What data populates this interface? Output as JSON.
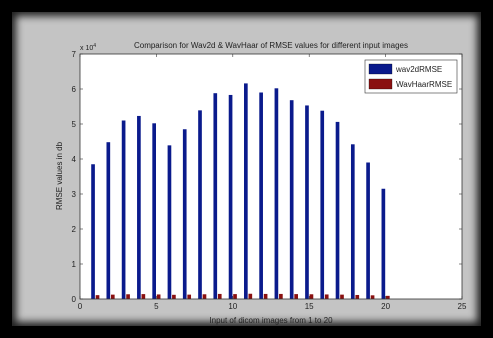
{
  "chart_data": {
    "type": "bar",
    "title": "Comparison for Wav2d & WavHaar of RMSE values for different input images",
    "xlabel": "Input of dicom images from 1 to 20",
    "ylabel": "RMSE values in db",
    "x": [
      1,
      2,
      3,
      4,
      5,
      6,
      7,
      8,
      9,
      10,
      11,
      12,
      13,
      14,
      15,
      16,
      17,
      18,
      19,
      20
    ],
    "xlim": [
      0,
      25
    ],
    "ylim": [
      0,
      70000
    ],
    "xticks": [
      0,
      5,
      10,
      15,
      20,
      25
    ],
    "yticks": [
      0,
      10000,
      20000,
      30000,
      40000,
      50000,
      60000,
      70000
    ],
    "ytick_labels": [
      "0",
      "1",
      "2",
      "3",
      "4",
      "5",
      "6",
      "7"
    ],
    "y_exponent_label": "x 10",
    "y_exponent_power": "4",
    "legend_position": "top-right",
    "grid": false,
    "series": [
      {
        "name": "wav2dRMSE",
        "color": "#0a1a8c",
        "values": [
          38500,
          44800,
          51000,
          52300,
          50200,
          43900,
          48500,
          53900,
          58800,
          58300,
          61600,
          59000,
          60200,
          56800,
          55300,
          53800,
          50600,
          44200,
          39000,
          31500
        ]
      },
      {
        "name": "WavHaarRMSE",
        "color": "#8a1010",
        "values": [
          1100,
          1250,
          1350,
          1400,
          1300,
          1200,
          1250,
          1350,
          1450,
          1400,
          1500,
          1450,
          1450,
          1400,
          1350,
          1300,
          1250,
          1150,
          1050,
          900
        ]
      }
    ]
  }
}
